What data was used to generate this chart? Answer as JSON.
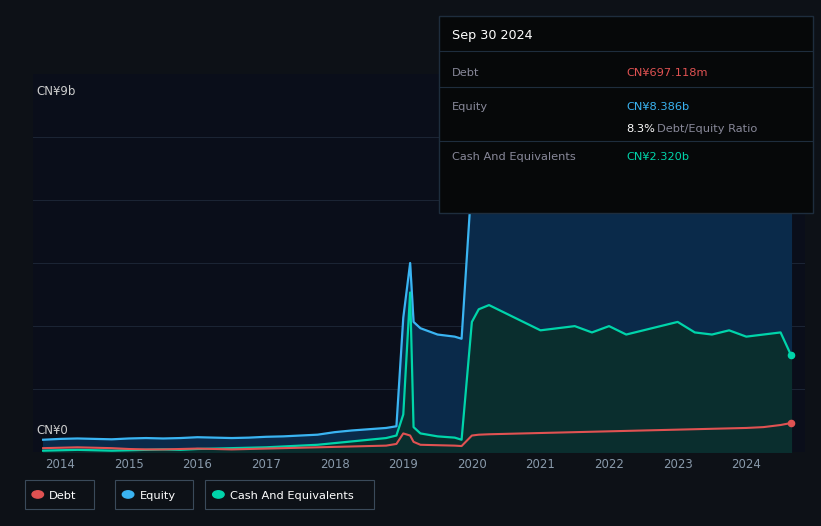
{
  "background_color": "#0d1117",
  "plot_bg_color": "#0a0e1a",
  "ylabel_top": "CN¥9b",
  "ylabel_bottom": "CN¥0",
  "x_ticks": [
    2014,
    2015,
    2016,
    2017,
    2018,
    2019,
    2020,
    2021,
    2022,
    2023,
    2024
  ],
  "debt_color": "#e05252",
  "equity_color": "#3ab4f2",
  "cash_color": "#00d4aa",
  "equity_fill_color": "#0a2a4a",
  "cash_fill_color": "#0a2e2e",
  "grid_color": "#1c2535",
  "debt_label_color": "#e05252",
  "equity_label_color": "#3ab4f2",
  "cash_label_color": "#00d4aa",
  "tooltip_title": "Sep 30 2024",
  "debt_value": "CN¥697.118m",
  "equity_value": "CN¥8.386b",
  "cash_value": "CN¥2.320b",
  "years": [
    2013.75,
    2014.0,
    2014.25,
    2014.5,
    2014.75,
    2015.0,
    2015.25,
    2015.5,
    2015.75,
    2016.0,
    2016.25,
    2016.5,
    2016.75,
    2017.0,
    2017.25,
    2017.5,
    2017.75,
    2018.0,
    2018.25,
    2018.5,
    2018.75,
    2018.9,
    2019.0,
    2019.1,
    2019.15,
    2019.25,
    2019.5,
    2019.75,
    2019.85,
    2020.0,
    2020.1,
    2020.25,
    2020.5,
    2020.75,
    2021.0,
    2021.25,
    2021.5,
    2021.75,
    2022.0,
    2022.25,
    2022.5,
    2022.75,
    2023.0,
    2023.25,
    2023.5,
    2023.75,
    2024.0,
    2024.25,
    2024.5,
    2024.65
  ],
  "equity_data": [
    0.3,
    0.32,
    0.33,
    0.32,
    0.31,
    0.33,
    0.34,
    0.33,
    0.34,
    0.36,
    0.35,
    0.34,
    0.35,
    0.37,
    0.38,
    0.4,
    0.42,
    0.48,
    0.52,
    0.55,
    0.58,
    0.62,
    3.2,
    4.5,
    3.1,
    2.95,
    2.8,
    2.75,
    2.7,
    6.5,
    7.1,
    7.2,
    7.35,
    7.4,
    7.45,
    7.55,
    7.65,
    7.7,
    7.75,
    7.8,
    7.85,
    7.9,
    7.92,
    7.95,
    8.05,
    8.1,
    8.15,
    8.2,
    8.35,
    8.386
  ],
  "cash_data": [
    0.04,
    0.05,
    0.06,
    0.05,
    0.04,
    0.05,
    0.06,
    0.07,
    0.06,
    0.08,
    0.09,
    0.1,
    0.11,
    0.12,
    0.14,
    0.16,
    0.18,
    0.22,
    0.26,
    0.3,
    0.34,
    0.4,
    0.9,
    3.8,
    0.6,
    0.45,
    0.38,
    0.35,
    0.3,
    3.1,
    3.4,
    3.5,
    3.3,
    3.1,
    2.9,
    2.95,
    3.0,
    2.85,
    3.0,
    2.8,
    2.9,
    3.0,
    3.1,
    2.85,
    2.8,
    2.9,
    2.75,
    2.8,
    2.85,
    2.32
  ],
  "debt_data": [
    0.1,
    0.11,
    0.12,
    0.11,
    0.1,
    0.08,
    0.07,
    0.07,
    0.08,
    0.09,
    0.08,
    0.07,
    0.08,
    0.09,
    0.1,
    0.11,
    0.12,
    0.13,
    0.14,
    0.15,
    0.16,
    0.2,
    0.45,
    0.4,
    0.25,
    0.18,
    0.17,
    0.16,
    0.15,
    0.4,
    0.42,
    0.43,
    0.44,
    0.45,
    0.46,
    0.47,
    0.48,
    0.49,
    0.5,
    0.51,
    0.52,
    0.53,
    0.54,
    0.55,
    0.56,
    0.57,
    0.58,
    0.6,
    0.65,
    0.697
  ],
  "ylim": [
    0,
    9.0
  ],
  "xlim": [
    2013.6,
    2024.85
  ]
}
